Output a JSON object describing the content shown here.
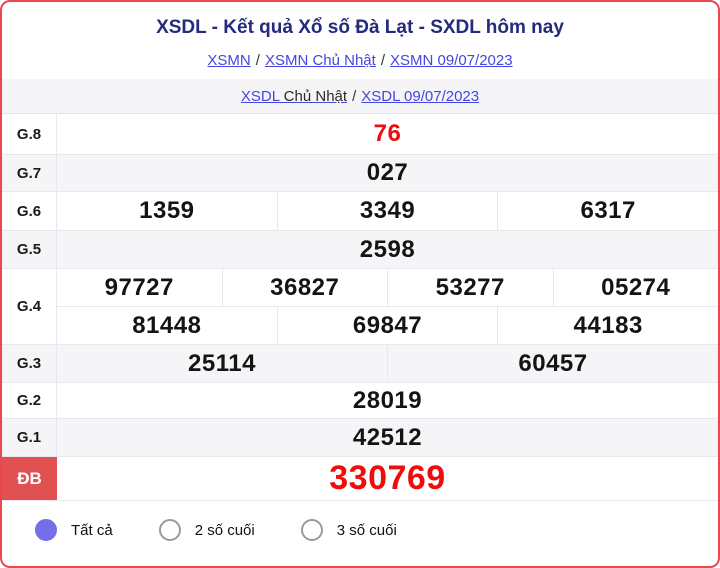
{
  "header": {
    "title": "XSDL - Kết quả Xổ số Đà Lạt - SXDL hôm nay",
    "breadcrumb1": {
      "link1": "XSMN",
      "sep1": "/",
      "link2": "XSMN Chủ Nhật",
      "sep2": "/",
      "link3": "XSMN 09/07/2023"
    },
    "breadcrumb2": {
      "link1_main": "XSDL",
      "link1_rest": " Chủ Nhật",
      "sep": "/",
      "link2": "XSDL 09/07/2023"
    }
  },
  "results": {
    "rows": [
      {
        "label": "G.8",
        "groups": [
          [
            "76"
          ]
        ],
        "highlight": true
      },
      {
        "label": "G.7",
        "groups": [
          [
            "027"
          ]
        ]
      },
      {
        "label": "G.6",
        "groups": [
          [
            "1359",
            "3349",
            "6317"
          ]
        ]
      },
      {
        "label": "G.5",
        "groups": [
          [
            "2598"
          ]
        ]
      },
      {
        "label": "G.4",
        "groups": [
          [
            "97727",
            "36827",
            "53277",
            "05274"
          ],
          [
            "81448",
            "69847",
            "44183"
          ]
        ]
      },
      {
        "label": "G.3",
        "groups": [
          [
            "25114",
            "60457"
          ]
        ]
      },
      {
        "label": "G.2",
        "groups": [
          [
            "28019"
          ]
        ]
      },
      {
        "label": "G.1",
        "groups": [
          [
            "42512"
          ]
        ]
      },
      {
        "label": "ĐB",
        "groups": [
          [
            "330769"
          ]
        ],
        "special": true,
        "highlight": true
      }
    ]
  },
  "filters": {
    "options": [
      {
        "label": "Tất cả",
        "selected": true
      },
      {
        "label": "2 số cuối",
        "selected": false
      },
      {
        "label": "3 số cuối",
        "selected": false
      }
    ]
  },
  "colors": {
    "border_red": "#e9494e",
    "special_label_bg": "#e25151",
    "value_red": "#ee0c0c",
    "title_navy": "#242b7e",
    "link_blue": "#4545e1",
    "alt_row_bg": "#f5f5f7",
    "radio_purple": "#766de8"
  }
}
